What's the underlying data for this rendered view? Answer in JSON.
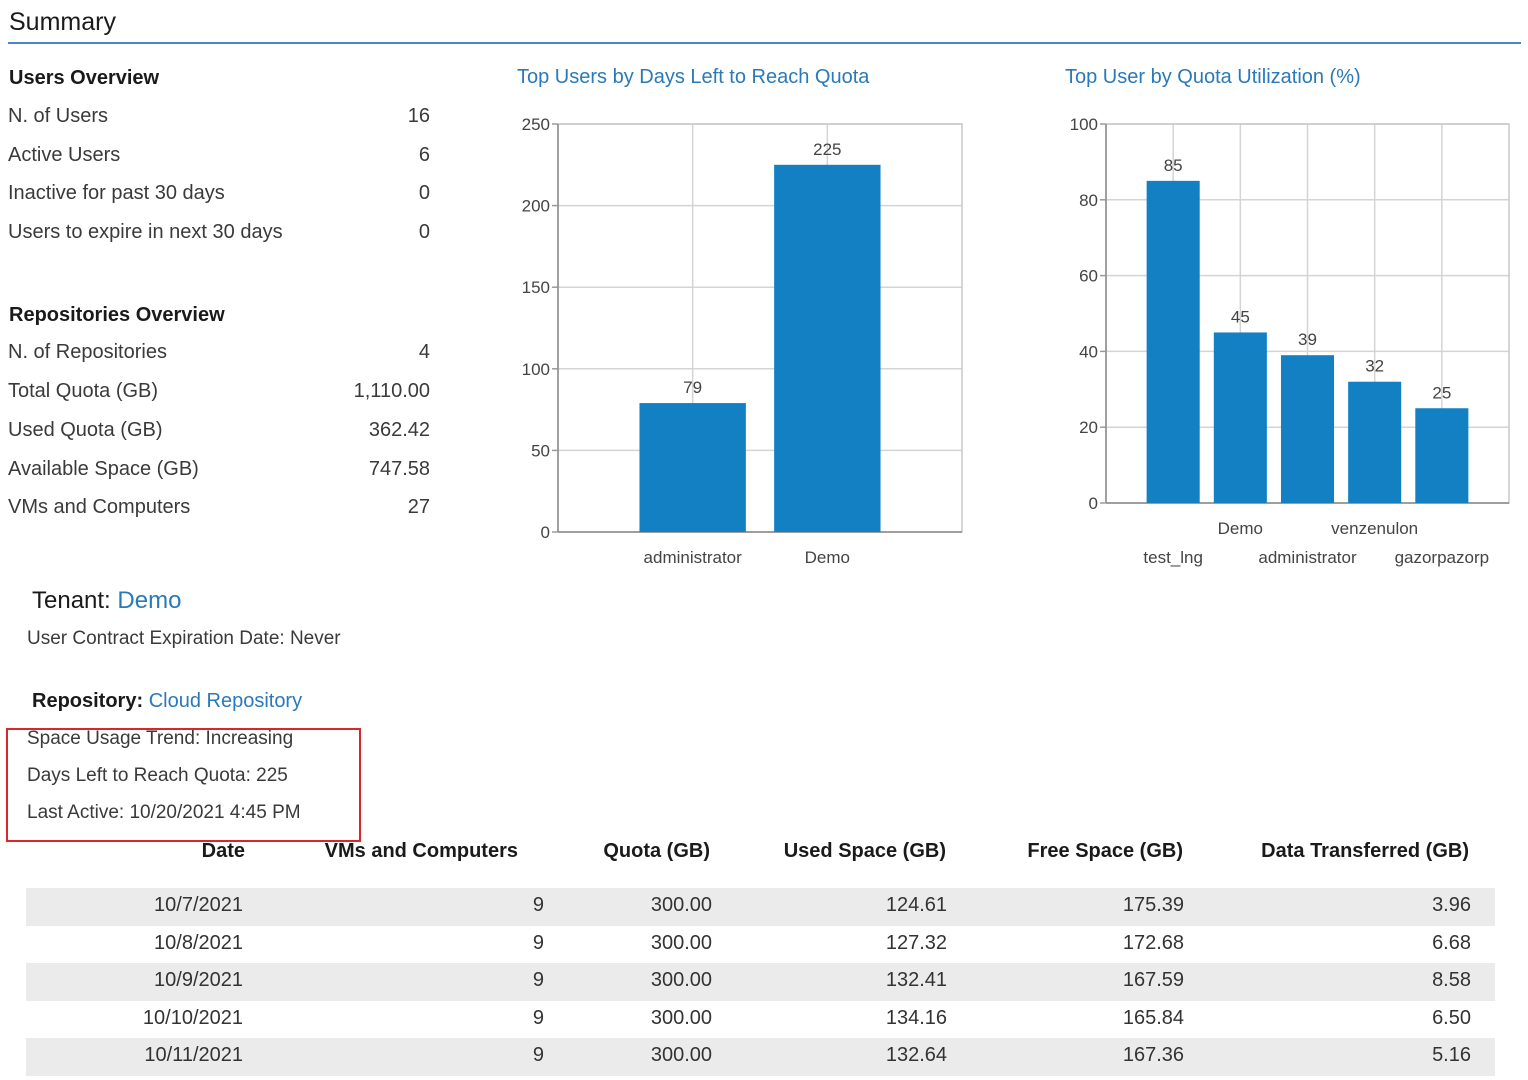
{
  "page": {
    "title": "Summary"
  },
  "users_overview": {
    "heading": "Users Overview",
    "rows": [
      {
        "label": "N. of Users",
        "value": "16"
      },
      {
        "label": "Active Users",
        "value": "6"
      },
      {
        "label": "Inactive for past 30 days",
        "value": "0"
      },
      {
        "label": "Users to expire in next 30 days",
        "value": "0"
      }
    ]
  },
  "repositories_overview": {
    "heading": "Repositories Overview",
    "rows": [
      {
        "label": "N. of Repositories",
        "value": "4"
      },
      {
        "label": "Total Quota (GB)",
        "value": "1,110.00"
      },
      {
        "label": "Used Quota (GB)",
        "value": "362.42"
      },
      {
        "label": "Available Space (GB)",
        "value": "747.58"
      },
      {
        "label": "VMs and Computers",
        "value": "27"
      }
    ]
  },
  "chart_data": [
    {
      "type": "bar",
      "title": "Top Users by Days Left to Reach Quota",
      "categories": [
        "administrator",
        "Demo"
      ],
      "values": [
        79,
        225
      ],
      "ylim": [
        0,
        250
      ],
      "yticks": [
        0,
        50,
        100,
        150,
        200,
        250
      ],
      "grid": true,
      "color": "#1480c4"
    },
    {
      "type": "bar",
      "title": "Top User by Quota Utilization (%)",
      "categories": [
        "test_lng",
        "Demo",
        "administrator",
        "venzenulon",
        "gazorpazorp"
      ],
      "values": [
        85,
        45,
        39,
        32,
        25
      ],
      "ylim": [
        0,
        100
      ],
      "yticks": [
        0,
        20,
        40,
        60,
        80,
        100
      ],
      "grid": true,
      "color": "#1480c4"
    }
  ],
  "tenant": {
    "label": "Tenant:",
    "name": "Demo",
    "contract": "User Contract Expiration Date: Never"
  },
  "repository": {
    "label": "Repository:",
    "name": "Cloud Repository",
    "trend": "Space Usage Trend: Increasing",
    "days_left": "Days Left to Reach Quota: 225",
    "last_active": "Last Active: 10/20/2021 4:45 PM"
  },
  "table": {
    "headers": [
      "Date",
      "VMs and Computers",
      "Quota (GB)",
      "Used Space (GB)",
      "Free Space (GB)",
      "Data Transferred (GB)"
    ],
    "rows": [
      [
        "10/7/2021",
        "9",
        "300.00",
        "124.61",
        "175.39",
        "3.96"
      ],
      [
        "10/8/2021",
        "9",
        "300.00",
        "127.32",
        "172.68",
        "6.68"
      ],
      [
        "10/9/2021",
        "9",
        "300.00",
        "132.41",
        "167.59",
        "8.58"
      ],
      [
        "10/10/2021",
        "9",
        "300.00",
        "134.16",
        "165.84",
        "6.50"
      ],
      [
        "10/11/2021",
        "9",
        "300.00",
        "132.64",
        "167.36",
        "5.16"
      ]
    ]
  },
  "colors": {
    "accent": "#2a7ab8",
    "bar": "#1480c4",
    "highlight_border": "#d9262b",
    "row_shade": "#ebebeb"
  }
}
